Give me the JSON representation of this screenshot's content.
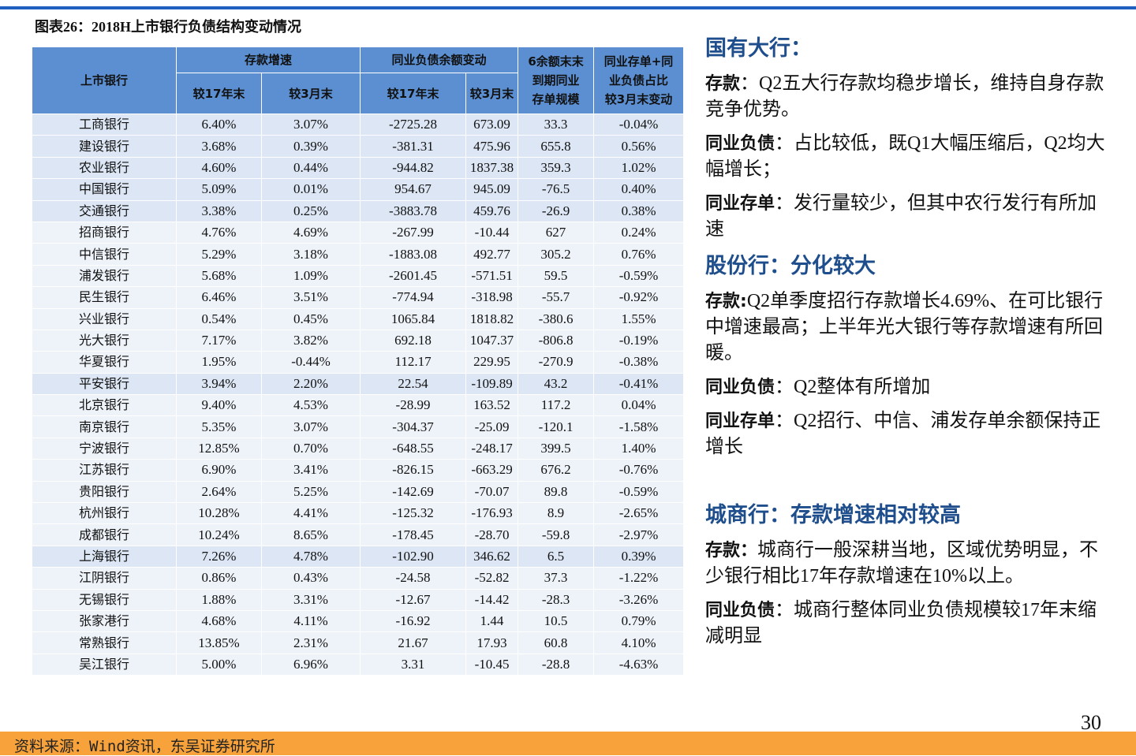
{
  "title": "图表26：2018H上市银行负债结构变动情况",
  "table": {
    "header": {
      "bank": "上市银行",
      "deposit_growth": "存款增速",
      "interbank_change": "同业负债余额变动",
      "cd_maturity": [
        "6余额末末",
        "到期同业",
        "存单规模"
      ],
      "ratio_change": [
        "同业存单+同",
        "业负债占比",
        "较3月末变动"
      ],
      "sub": [
        "较17年末",
        "较3月末",
        "较17年末",
        "较3月末"
      ]
    },
    "rows": [
      [
        "工商银行",
        "6.40%",
        "3.07%",
        "-2725.28",
        "673.09",
        "33.3",
        "-0.04%"
      ],
      [
        "建设银行",
        "3.68%",
        "0.39%",
        "-381.31",
        "475.96",
        "655.8",
        "0.56%"
      ],
      [
        "农业银行",
        "4.60%",
        "0.44%",
        "-944.82",
        "1837.38",
        "359.3",
        "1.02%"
      ],
      [
        "中国银行",
        "5.09%",
        "0.01%",
        "954.67",
        "945.09",
        "-76.5",
        "0.40%"
      ],
      [
        "交通银行",
        "3.38%",
        "0.25%",
        "-3883.78",
        "459.76",
        "-26.9",
        "0.38%"
      ],
      [
        "招商银行",
        "4.76%",
        "4.69%",
        "-267.99",
        "-10.44",
        "627",
        "0.24%"
      ],
      [
        "中信银行",
        "5.29%",
        "3.18%",
        "-1883.08",
        "492.77",
        "305.2",
        "0.76%"
      ],
      [
        "浦发银行",
        "5.68%",
        "1.09%",
        "-2601.45",
        "-571.51",
        "59.5",
        "-0.59%"
      ],
      [
        "民生银行",
        "6.46%",
        "3.51%",
        "-774.94",
        "-318.98",
        "-55.7",
        "-0.92%"
      ],
      [
        "兴业银行",
        "0.54%",
        "0.45%",
        "1065.84",
        "1818.82",
        "-380.6",
        "1.55%"
      ],
      [
        "光大银行",
        "7.17%",
        "3.82%",
        "692.18",
        "1047.37",
        "-806.8",
        "-0.19%"
      ],
      [
        "华夏银行",
        "1.95%",
        "-0.44%",
        "112.17",
        "229.95",
        "-270.9",
        "-0.38%"
      ],
      [
        "平安银行",
        "3.94%",
        "2.20%",
        "22.54",
        "-109.89",
        "43.2",
        "-0.41%"
      ],
      [
        "北京银行",
        "9.40%",
        "4.53%",
        "-28.99",
        "163.52",
        "117.2",
        "0.04%"
      ],
      [
        "南京银行",
        "5.35%",
        "3.07%",
        "-304.37",
        "-25.09",
        "-120.1",
        "-1.58%"
      ],
      [
        "宁波银行",
        "12.85%",
        "0.70%",
        "-648.55",
        "-248.17",
        "399.5",
        "1.40%"
      ],
      [
        "江苏银行",
        "6.90%",
        "3.41%",
        "-826.15",
        "-663.29",
        "676.2",
        "-0.76%"
      ],
      [
        "贵阳银行",
        "2.64%",
        "5.25%",
        "-142.69",
        "-70.07",
        "89.8",
        "-0.59%"
      ],
      [
        "杭州银行",
        "10.28%",
        "4.41%",
        "-125.32",
        "-176.93",
        "8.9",
        "-2.65%"
      ],
      [
        "成都银行",
        "10.24%",
        "8.65%",
        "-178.45",
        "-28.70",
        "-59.8",
        "-2.97%"
      ],
      [
        "上海银行",
        "7.26%",
        "4.78%",
        "-102.90",
        "346.62",
        "6.5",
        "0.39%"
      ],
      [
        "江阴银行",
        "0.86%",
        "0.43%",
        "-24.58",
        "-52.82",
        "37.3",
        "-1.22%"
      ],
      [
        "无锡银行",
        "1.88%",
        "3.31%",
        "-12.67",
        "-14.42",
        "-28.3",
        "-3.26%"
      ],
      [
        "张家港行",
        "4.68%",
        "4.11%",
        "-16.92",
        "1.44",
        "10.5",
        "0.79%"
      ],
      [
        "常熟银行",
        "13.85%",
        "2.31%",
        "21.67",
        "17.93",
        "60.8",
        "4.10%"
      ],
      [
        "吴江银行",
        "5.00%",
        "6.96%",
        "3.31",
        "-10.45",
        "-28.8",
        "-4.63%"
      ]
    ]
  },
  "sections": [
    {
      "heading": "国有大行：",
      "items": [
        {
          "lead": "存款",
          "text": "：Q2五大行存款均稳步增长，维持自身存款竞争优势。"
        },
        {
          "lead": "同业负债",
          "text": "：占比较低，既Q1大幅压缩后，Q2均大幅增长；"
        },
        {
          "lead": "同业存单",
          "text": "：发行量较少，但其中农行发行有所加速"
        }
      ]
    },
    {
      "heading": "股份行：分化较大",
      "items": [
        {
          "lead": "存款:",
          "text": "Q2单季度招行存款增长4.69%、在可比银行中增速最高；上半年光大银行等存款增速有所回暖。"
        },
        {
          "lead": "同业负债",
          "text": "：Q2整体有所增加"
        },
        {
          "lead": "同业存单",
          "text": "：Q2招行、中信、浦发存单余额保持正增长"
        }
      ]
    },
    {
      "heading": "城商行：存款增速相对较高",
      "items": [
        {
          "lead": "存款：",
          "text": "城商行一般深耕当地，区域优势明显，不少银行相比17年存款增速在10%以上。"
        },
        {
          "lead": "同业负债",
          "text": "：城商行整体同业负债规模较17年末缩减明显"
        }
      ]
    }
  ],
  "page_number": "30",
  "source": "资料来源：Wind资讯，东吴证券研究所"
}
